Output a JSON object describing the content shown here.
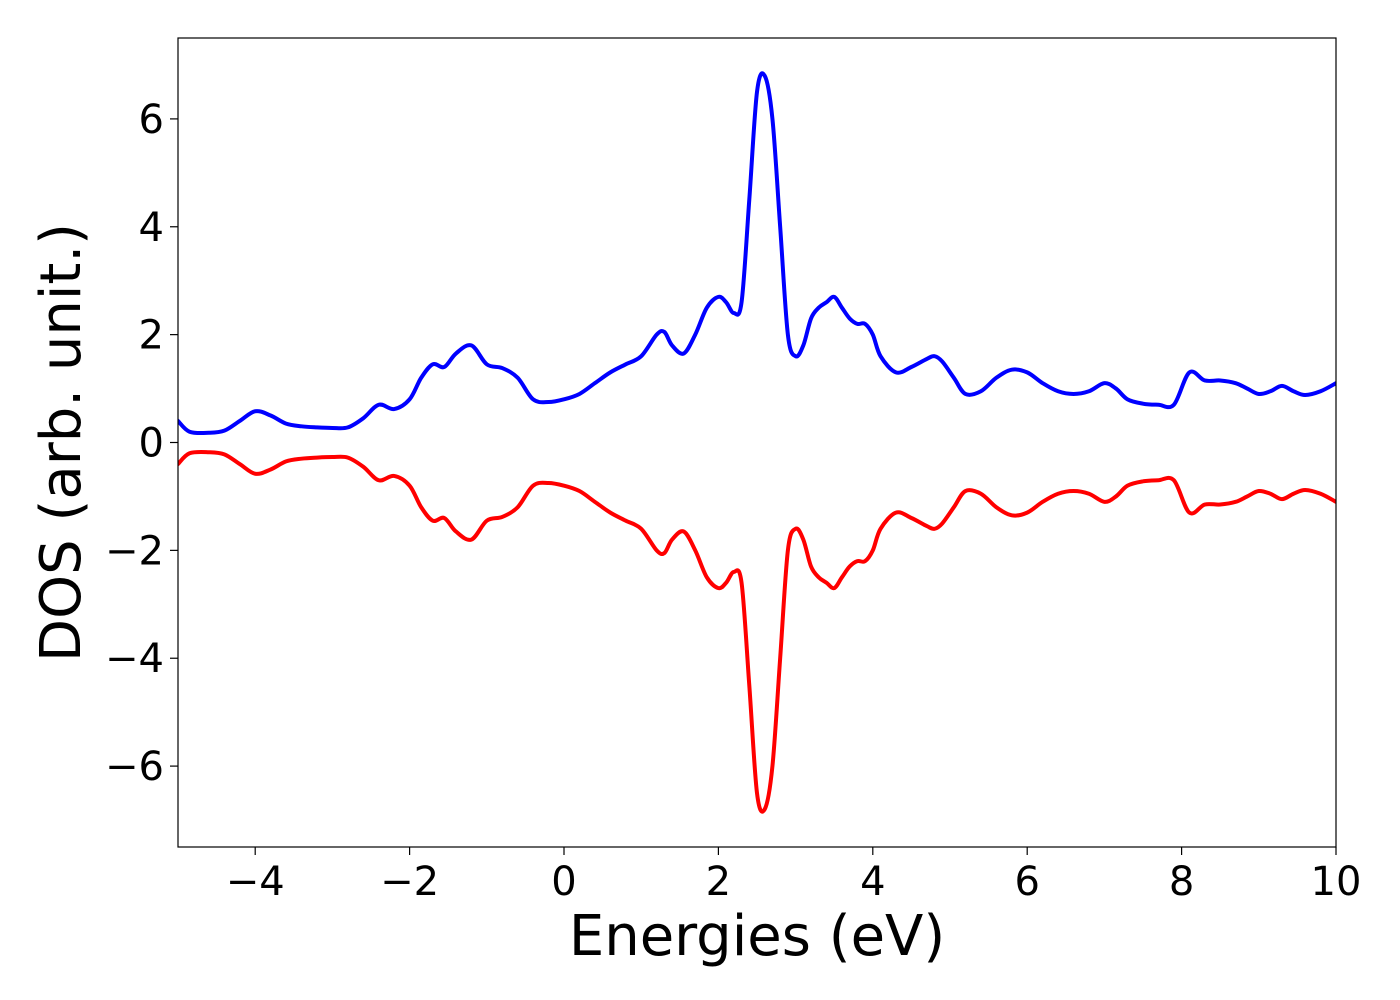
{
  "chart_data": {
    "type": "line",
    "title": "",
    "xlabel": "Energies (eV)",
    "ylabel": "DOS (arb. unit.)",
    "xlim": [
      -5,
      10
    ],
    "ylim": [
      -7.5,
      7.5
    ],
    "xticks": [
      -4,
      -2,
      0,
      2,
      4,
      6,
      8,
      10
    ],
    "yticks": [
      -6,
      -4,
      -2,
      0,
      2,
      4,
      6
    ],
    "xtick_labels": [
      "−4",
      "−2",
      "0",
      "2",
      "4",
      "6",
      "8",
      "10"
    ],
    "ytick_labels": [
      "−6",
      "−4",
      "−2",
      "0",
      "2",
      "4",
      "6"
    ],
    "grid": false,
    "legend": "none",
    "series": [
      {
        "color": "#0000ff",
        "x": [
          -5.0,
          -4.85,
          -4.6,
          -4.4,
          -4.2,
          -4.0,
          -3.8,
          -3.6,
          -3.4,
          -3.2,
          -3.0,
          -2.8,
          -2.6,
          -2.4,
          -2.2,
          -2.0,
          -1.85,
          -1.7,
          -1.55,
          -1.4,
          -1.2,
          -1.0,
          -0.8,
          -0.6,
          -0.4,
          -0.2,
          0.0,
          0.2,
          0.4,
          0.6,
          0.8,
          1.0,
          1.2,
          1.3,
          1.4,
          1.55,
          1.7,
          1.85,
          2.0,
          2.1,
          2.2,
          2.3,
          2.4,
          2.5,
          2.6,
          2.7,
          2.8,
          2.9,
          3.0,
          3.1,
          3.2,
          3.3,
          3.4,
          3.5,
          3.6,
          3.7,
          3.8,
          3.9,
          4.0,
          4.1,
          4.3,
          4.5,
          4.7,
          4.8,
          4.9,
          5.05,
          5.2,
          5.4,
          5.6,
          5.8,
          6.0,
          6.2,
          6.4,
          6.6,
          6.8,
          7.0,
          7.15,
          7.3,
          7.5,
          7.7,
          7.9,
          8.1,
          8.3,
          8.5,
          8.7,
          8.85,
          9.0,
          9.15,
          9.3,
          9.45,
          9.6,
          9.8,
          10.0
        ],
        "y": [
          0.4,
          0.2,
          0.18,
          0.22,
          0.4,
          0.58,
          0.5,
          0.35,
          0.3,
          0.28,
          0.27,
          0.28,
          0.45,
          0.7,
          0.62,
          0.8,
          1.2,
          1.45,
          1.4,
          1.65,
          1.8,
          1.45,
          1.38,
          1.2,
          0.8,
          0.75,
          0.8,
          0.9,
          1.1,
          1.3,
          1.45,
          1.6,
          2.0,
          2.05,
          1.8,
          1.65,
          2.0,
          2.5,
          2.7,
          2.6,
          2.4,
          2.6,
          4.5,
          6.5,
          6.8,
          6.0,
          4.0,
          2.0,
          1.6,
          1.8,
          2.3,
          2.5,
          2.6,
          2.7,
          2.5,
          2.3,
          2.2,
          2.2,
          2.0,
          1.6,
          1.3,
          1.4,
          1.55,
          1.6,
          1.5,
          1.2,
          0.9,
          0.95,
          1.2,
          1.35,
          1.3,
          1.1,
          0.95,
          0.9,
          0.95,
          1.1,
          1.0,
          0.8,
          0.72,
          0.7,
          0.7,
          1.3,
          1.15,
          1.15,
          1.1,
          1.0,
          0.9,
          0.95,
          1.05,
          0.95,
          0.88,
          0.95,
          1.1
        ]
      },
      {
        "color": "#ff0000",
        "x": [
          -5.0,
          -4.85,
          -4.6,
          -4.4,
          -4.2,
          -4.0,
          -3.8,
          -3.6,
          -3.4,
          -3.2,
          -3.0,
          -2.8,
          -2.6,
          -2.4,
          -2.2,
          -2.0,
          -1.85,
          -1.7,
          -1.55,
          -1.4,
          -1.2,
          -1.0,
          -0.8,
          -0.6,
          -0.4,
          -0.2,
          0.0,
          0.2,
          0.4,
          0.6,
          0.8,
          1.0,
          1.2,
          1.3,
          1.4,
          1.55,
          1.7,
          1.85,
          2.0,
          2.1,
          2.2,
          2.3,
          2.4,
          2.5,
          2.6,
          2.7,
          2.8,
          2.9,
          3.0,
          3.1,
          3.2,
          3.3,
          3.4,
          3.5,
          3.6,
          3.7,
          3.8,
          3.9,
          4.0,
          4.1,
          4.3,
          4.5,
          4.7,
          4.8,
          4.9,
          5.05,
          5.2,
          5.4,
          5.6,
          5.8,
          6.0,
          6.2,
          6.4,
          6.6,
          6.8,
          7.0,
          7.15,
          7.3,
          7.5,
          7.7,
          7.9,
          8.1,
          8.3,
          8.5,
          8.7,
          8.85,
          9.0,
          9.15,
          9.3,
          9.45,
          9.6,
          9.8,
          10.0
        ],
        "y": [
          -0.4,
          -0.2,
          -0.18,
          -0.22,
          -0.4,
          -0.58,
          -0.5,
          -0.35,
          -0.3,
          -0.28,
          -0.27,
          -0.28,
          -0.45,
          -0.7,
          -0.62,
          -0.8,
          -1.2,
          -1.45,
          -1.4,
          -1.65,
          -1.8,
          -1.45,
          -1.38,
          -1.2,
          -0.8,
          -0.75,
          -0.8,
          -0.9,
          -1.1,
          -1.3,
          -1.45,
          -1.6,
          -2.0,
          -2.05,
          -1.8,
          -1.65,
          -2.0,
          -2.5,
          -2.7,
          -2.6,
          -2.4,
          -2.6,
          -4.5,
          -6.5,
          -6.8,
          -6.0,
          -4.0,
          -2.0,
          -1.6,
          -1.8,
          -2.3,
          -2.5,
          -2.6,
          -2.7,
          -2.5,
          -2.3,
          -2.2,
          -2.2,
          -2.0,
          -1.6,
          -1.3,
          -1.4,
          -1.55,
          -1.6,
          -1.5,
          -1.2,
          -0.9,
          -0.95,
          -1.2,
          -1.35,
          -1.3,
          -1.1,
          -0.95,
          -0.9,
          -0.95,
          -1.1,
          -1.0,
          -0.8,
          -0.72,
          -0.7,
          -0.7,
          -1.3,
          -1.15,
          -1.15,
          -1.1,
          -1.0,
          -0.9,
          -0.95,
          -1.05,
          -0.95,
          -0.88,
          -0.95,
          -1.1
        ]
      }
    ]
  }
}
